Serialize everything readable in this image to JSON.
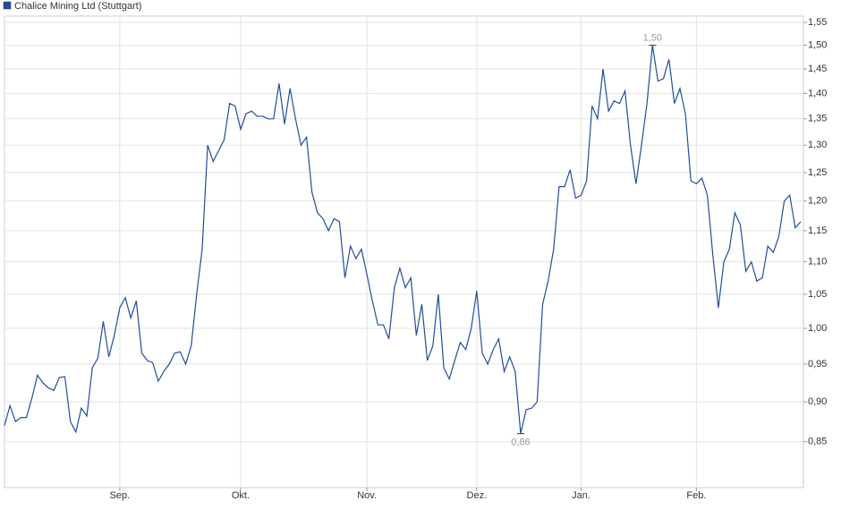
{
  "chart_data": {
    "type": "line",
    "series": [
      {
        "name": "Chalice Mining Ltd (Stuttgart)",
        "color": "#1f4e9c",
        "values": [
          0.87,
          0.895,
          0.875,
          0.88,
          0.88,
          0.905,
          0.935,
          0.925,
          0.918,
          0.915,
          0.932,
          0.933,
          0.875,
          0.862,
          0.892,
          0.882,
          0.945,
          0.958,
          1.01,
          0.96,
          0.99,
          1.03,
          1.045,
          1.015,
          1.04,
          0.965,
          0.955,
          0.952,
          0.927,
          0.94,
          0.95,
          0.965,
          0.967,
          0.95,
          0.975,
          1.05,
          1.12,
          1.3,
          1.27,
          1.29,
          1.31,
          1.38,
          1.375,
          1.33,
          1.36,
          1.365,
          1.355,
          1.355,
          1.35,
          1.35,
          1.42,
          1.34,
          1.41,
          1.35,
          1.3,
          1.315,
          1.215,
          1.18,
          1.17,
          1.15,
          1.17,
          1.165,
          1.075,
          1.125,
          1.105,
          1.12,
          1.08,
          1.04,
          1.005,
          1.005,
          0.985,
          1.06,
          1.09,
          1.06,
          1.075,
          0.99,
          1.035,
          0.955,
          0.975,
          1.05,
          0.945,
          0.93,
          0.955,
          0.98,
          0.97,
          1.0,
          1.055,
          0.965,
          0.95,
          0.97,
          0.985,
          0.94,
          0.96,
          0.94,
          0.86,
          0.89,
          0.892,
          0.9,
          1.035,
          1.07,
          1.12,
          1.225,
          1.225,
          1.255,
          1.205,
          1.21,
          1.235,
          1.375,
          1.35,
          1.45,
          1.365,
          1.385,
          1.38,
          1.405,
          1.3,
          1.23,
          1.3,
          1.38,
          1.5,
          1.425,
          1.43,
          1.47,
          1.38,
          1.41,
          1.36,
          1.235,
          1.23,
          1.24,
          1.21,
          1.11,
          1.03,
          1.1,
          1.12,
          1.18,
          1.16,
          1.085,
          1.1,
          1.07,
          1.075,
          1.125,
          1.115,
          1.14,
          1.2,
          1.21,
          1.155,
          1.165
        ]
      }
    ],
    "categories": [
      null,
      null,
      null,
      null,
      null,
      null,
      null,
      null,
      null,
      null,
      null,
      null,
      null,
      null,
      null,
      null,
      null,
      null,
      null,
      null,
      null,
      "Sep.",
      null,
      null,
      null,
      null,
      null,
      null,
      null,
      null,
      null,
      null,
      null,
      null,
      null,
      null,
      null,
      null,
      null,
      null,
      null,
      null,
      null,
      "Okt.",
      null,
      null,
      null,
      null,
      null,
      null,
      null,
      null,
      null,
      null,
      null,
      null,
      null,
      null,
      null,
      null,
      null,
      null,
      null,
      null,
      null,
      null,
      "Nov.",
      null,
      null,
      null,
      null,
      null,
      null,
      null,
      null,
      null,
      null,
      null,
      null,
      null,
      null,
      null,
      null,
      null,
      null,
      null,
      "Dez.",
      null,
      null,
      null,
      null,
      null,
      null,
      null,
      null,
      null,
      null,
      null,
      null,
      null,
      null,
      null,
      null,
      null,
      null,
      "Jan.",
      null,
      null,
      null,
      null,
      null,
      null,
      null,
      null,
      null,
      null,
      null,
      null,
      null,
      null,
      null,
      null,
      null,
      null,
      null,
      null,
      "Feb.",
      null,
      null,
      null,
      null,
      null,
      null,
      null,
      null,
      null,
      null,
      null,
      null,
      null,
      null,
      null,
      null,
      null,
      null,
      null
    ],
    "ylim": [
      0.796,
      1.564
    ],
    "log_scale": true,
    "grid": true,
    "yticks": [
      {
        "value": 0.85,
        "label": "0,85"
      },
      {
        "value": 0.9,
        "label": "0,90"
      },
      {
        "value": 0.95,
        "label": "0,95"
      },
      {
        "value": 1.0,
        "label": "1,00"
      },
      {
        "value": 1.05,
        "label": "1,05"
      },
      {
        "value": 1.1,
        "label": "1,10"
      },
      {
        "value": 1.15,
        "label": "1,15"
      },
      {
        "value": 1.2,
        "label": "1,20"
      },
      {
        "value": 1.25,
        "label": "1,25"
      },
      {
        "value": 1.3,
        "label": "1,30"
      },
      {
        "value": 1.35,
        "label": "1,35"
      },
      {
        "value": 1.4,
        "label": "1,40"
      },
      {
        "value": 1.45,
        "label": "1,45"
      },
      {
        "value": 1.5,
        "label": "1,50"
      },
      {
        "value": 1.55,
        "label": "1,55"
      }
    ],
    "annotations": [
      {
        "value": 1.5,
        "label": "1,50"
      },
      {
        "value": 0.86,
        "label": "0,86"
      }
    ]
  }
}
